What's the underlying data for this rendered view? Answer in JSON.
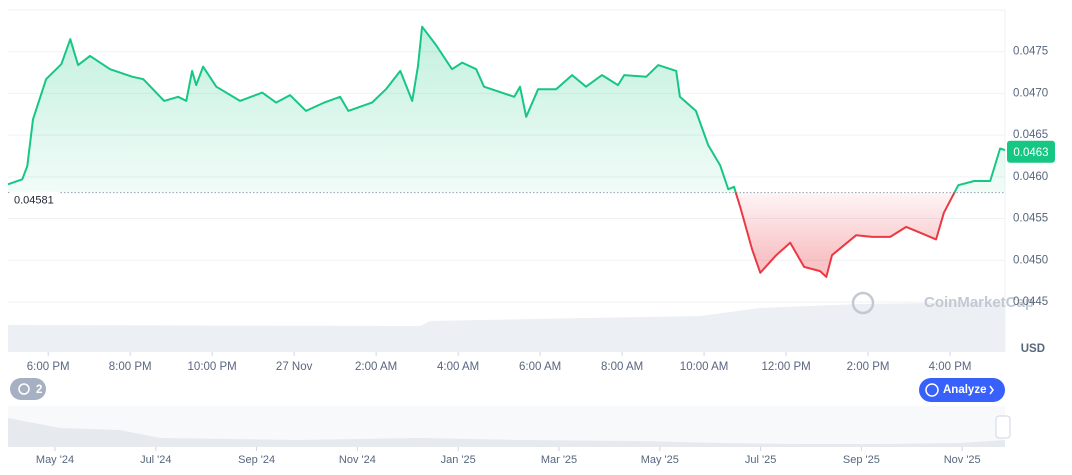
{
  "chart_data": {
    "type": "line",
    "x": [
      17.02,
      17.37,
      17.49,
      17.63,
      17.95,
      18.32,
      18.54,
      18.73,
      19.02,
      19.51,
      20.05,
      20.32,
      20.83,
      21.17,
      21.37,
      21.51,
      21.61,
      21.78,
      22.1,
      22.68,
      23.22,
      23.56,
      23.9,
      24.29,
      24.73,
      25.12,
      25.32,
      25.9,
      26.24,
      26.59,
      26.88,
      27.02,
      27.12,
      27.46,
      27.85,
      28.1,
      28.44,
      28.63,
      29.37,
      29.51,
      29.66,
      29.95,
      30.39,
      30.78,
      31.12,
      31.51,
      31.9,
      32.05,
      32.59,
      32.88,
      33.32,
      33.41,
      33.8,
      34.1,
      34.39,
      34.59,
      34.73,
      34.88,
      35.17,
      35.37,
      35.76,
      36.1,
      36.44,
      36.83,
      36.98,
      37.12,
      37.71,
      38.1,
      38.54,
      38.93,
      39.27,
      39.66,
      39.85,
      40.2,
      40.59,
      40.98,
      41.22,
      41.34
    ],
    "values": [
      0.04591,
      0.04597,
      0.04613,
      0.04669,
      0.04717,
      0.04735,
      0.04765,
      0.04734,
      0.04745,
      0.04729,
      0.0472,
      0.04717,
      0.04691,
      0.04696,
      0.04691,
      0.04727,
      0.0471,
      0.04732,
      0.04708,
      0.04691,
      0.04701,
      0.04689,
      0.04698,
      0.04679,
      0.04689,
      0.04696,
      0.04679,
      0.04689,
      0.04705,
      0.04727,
      0.04691,
      0.04733,
      0.0478,
      0.04758,
      0.04729,
      0.04737,
      0.04729,
      0.04708,
      0.04696,
      0.04708,
      0.04672,
      0.04705,
      0.04705,
      0.04722,
      0.04708,
      0.04722,
      0.0471,
      0.04722,
      0.0472,
      0.04734,
      0.04727,
      0.04696,
      0.04679,
      0.04638,
      0.04614,
      0.04585,
      0.04588,
      0.04564,
      0.04513,
      0.04485,
      0.04506,
      0.04521,
      0.04492,
      0.04487,
      0.0448,
      0.04506,
      0.0453,
      0.04528,
      0.04528,
      0.0454,
      0.04533,
      0.04525,
      0.04557,
      0.0459,
      0.04595,
      0.04595,
      0.04634,
      0.04632
    ],
    "color_up": "#16c784",
    "color_down": "#ea3943",
    "baseline": 0.04581,
    "current_price": 0.0463,
    "xlim": [
      17.02,
      41.34
    ],
    "ylim": [
      0.0439,
      0.048
    ],
    "xticks": [
      {
        "value": 18,
        "label": "6:00 PM"
      },
      {
        "value": 20,
        "label": "8:00 PM"
      },
      {
        "value": 22,
        "label": "10:00 PM"
      },
      {
        "value": 24,
        "label": "27 Nov"
      },
      {
        "value": 26,
        "label": "2:00 AM"
      },
      {
        "value": 28,
        "label": "4:00 AM"
      },
      {
        "value": 30,
        "label": "6:00 AM"
      },
      {
        "value": 32,
        "label": "8:00 AM"
      },
      {
        "value": 34,
        "label": "10:00 AM"
      },
      {
        "value": 36,
        "label": "12:00 PM"
      },
      {
        "value": 38,
        "label": "2:00 PM"
      },
      {
        "value": 40,
        "label": "4:00 PM"
      }
    ],
    "yticks": [
      0.0445,
      {
        "value": 0.045,
        "label": "0.0450"
      },
      0.0455,
      {
        "value": 0.046,
        "label": "0.0460"
      },
      0.0465,
      {
        "value": 0.047,
        "label": "0.0470"
      },
      0.0475
    ],
    "grid": true,
    "currency": "USD",
    "watermark": "CoinMarketCap",
    "history_count": "2",
    "analyze_button": "Analyze",
    "navigator_labels": [
      "May '24",
      "Jul '24",
      "Sep '24",
      "Nov '24",
      "Jan '25",
      "Mar '25",
      "May '25",
      "Jul '25",
      "Sep '25",
      "Nov '25"
    ]
  }
}
